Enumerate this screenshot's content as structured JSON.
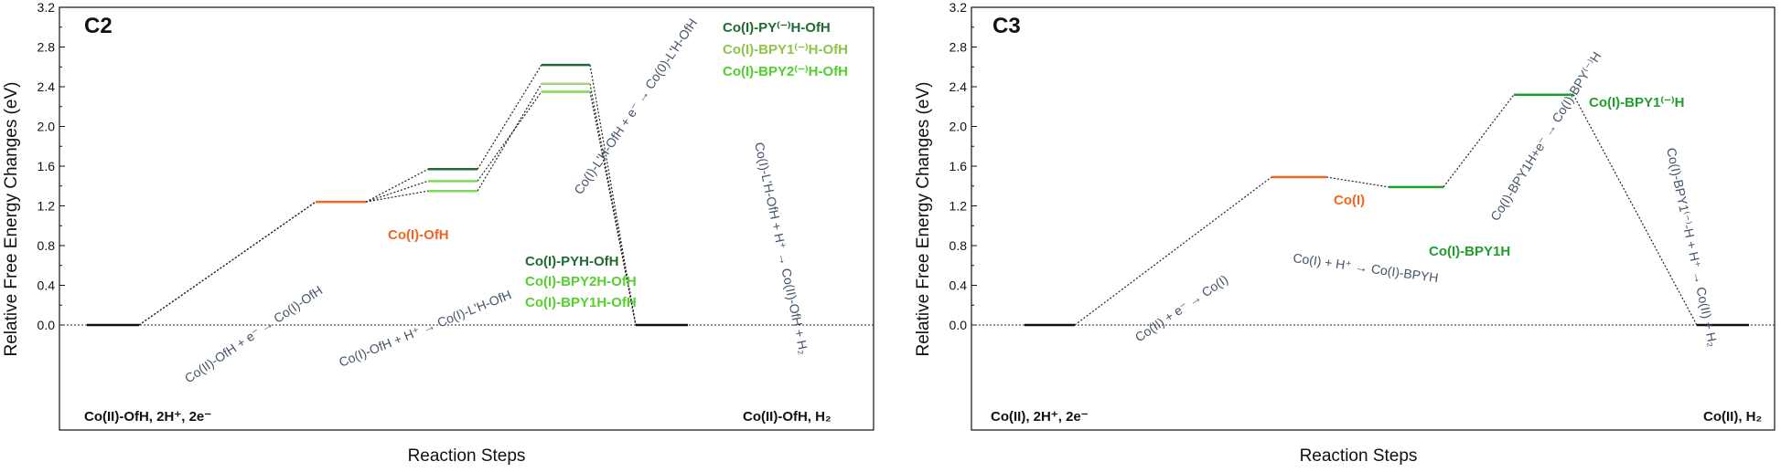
{
  "chart_data": [
    {
      "type": "line",
      "panel": "C2",
      "title": "C2",
      "xlabel": "Reaction Steps",
      "ylabel": "Relative Free Energy Changes (eV)",
      "ylim": [
        0,
        3.2
      ],
      "yticks": [
        "0.0",
        "0.4",
        "0.8",
        "1.2",
        "1.6",
        "2.0",
        "2.4",
        "2.8",
        "3.2"
      ],
      "zero_line": "dotted",
      "levels": [
        {
          "id": "start",
          "step": 1,
          "y": 0.0,
          "color": "#111111"
        },
        {
          "id": "coi",
          "step": 2,
          "y": 1.24,
          "color": "#f26522"
        },
        {
          "id": "pyh",
          "step": 3,
          "y": 1.57,
          "color": "#1e6b2e"
        },
        {
          "id": "bpy2h",
          "step": 3,
          "y": 1.45,
          "color": "#7ed957"
        },
        {
          "id": "bpy1h",
          "step": 3,
          "y": 1.35,
          "color": "#7ed957"
        },
        {
          "id": "py_m",
          "step": 4,
          "y": 2.62,
          "color": "#1e6b2e"
        },
        {
          "id": "bpy1_m",
          "step": 4,
          "y": 2.43,
          "color": "#a8d08d"
        },
        {
          "id": "bpy2_m",
          "step": 4,
          "y": 2.35,
          "color": "#7ed957"
        },
        {
          "id": "end",
          "step": 5,
          "y": 0.0,
          "color": "#111111"
        }
      ],
      "series": [
        {
          "name": "PY",
          "path": [
            0.0,
            1.24,
            1.57,
            2.62,
            0.0
          ]
        },
        {
          "name": "BPY1",
          "path": [
            0.0,
            1.24,
            1.35,
            2.43,
            0.0
          ]
        },
        {
          "name": "BPY2",
          "path": [
            0.0,
            1.24,
            1.45,
            2.35,
            0.0
          ]
        }
      ],
      "level_labels": {
        "start": "Co(II)-OfH, 2H⁺, 2e⁻",
        "coi": "Co(I)-OfH",
        "pyh": "Co(I)-PYH-OfH",
        "bpy2h": "Co(I)-BPY2H-OfH",
        "bpy1h": "Co(I)-BPY1H-OfH",
        "py_m": "Co(I)-PY⁽⁻⁾H-OfH",
        "bpy1_m": "Co(I)-BPY1⁽⁻⁾H-OfH",
        "bpy2_m": "Co(I)-BPY2⁽⁻⁾H-OfH",
        "end": "Co(II)-OfH, H₂"
      },
      "annotations": [
        {
          "text": "Co(II)-OfH + e⁻ → Co(I)-OfH"
        },
        {
          "text": "Co(I)-OfH + H⁺ → Co(I)-L'H-OfH"
        },
        {
          "text": "Co(I)-L'H-OfH + e⁻ → Co(0)-L'H-OfH"
        },
        {
          "text": "Co(I)-L'H-OfH + H⁺ → Co(II)-OfH + H₂"
        }
      ]
    },
    {
      "type": "line",
      "panel": "C3",
      "title": "C3",
      "xlabel": "Reaction Steps",
      "ylabel": "Relative Free Energy Changes (eV)",
      "ylim": [
        0,
        3.2
      ],
      "yticks": [
        "0.0",
        "0.4",
        "0.8",
        "1.2",
        "1.6",
        "2.0",
        "2.4",
        "2.8",
        "3.2"
      ],
      "zero_line": "dotted",
      "levels": [
        {
          "id": "start",
          "step": 1,
          "y": 0.0,
          "color": "#111111"
        },
        {
          "id": "coi",
          "step": 2,
          "y": 1.49,
          "color": "#f26522"
        },
        {
          "id": "bpy1h",
          "step": 3,
          "y": 1.39,
          "color": "#1f9e2a"
        },
        {
          "id": "bpy1_m",
          "step": 4,
          "y": 2.32,
          "color": "#1f9e2a"
        },
        {
          "id": "end",
          "step": 5,
          "y": 0.0,
          "color": "#111111"
        }
      ],
      "series": [
        {
          "name": "BPY1",
          "path": [
            0.0,
            1.49,
            1.39,
            2.32,
            0.0
          ]
        }
      ],
      "level_labels": {
        "start": "Co(II), 2H⁺, 2e⁻",
        "coi": "Co(I)",
        "bpy1h": "Co(I)-BPY1H",
        "bpy1_m": "Co(I)-BPY1⁽⁻⁾H",
        "end": "Co(II), H₂"
      },
      "annotations": [
        {
          "text": "Co(II) + e⁻ → Co(I)"
        },
        {
          "text": "Co(I) + H⁺ → Co(I)-BPYH"
        },
        {
          "text": "Co(I)-BPY1H+e⁻ → Co(I)-BPY⁽⁻⁾H"
        },
        {
          "text": "Co(I)-BPY1⁽⁻⁾-H + H⁺ → Co(II) + H₂"
        }
      ]
    }
  ]
}
